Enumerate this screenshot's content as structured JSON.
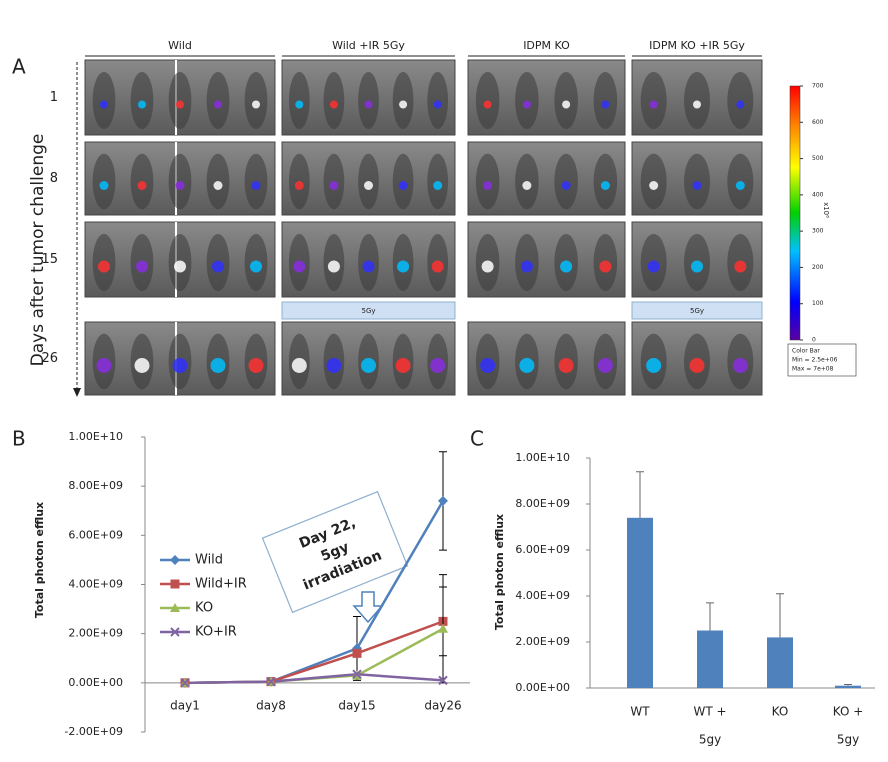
{
  "panel_a": {
    "label": "A",
    "groups": [
      "Wild",
      "Wild +IR 5Gy",
      "IDPM KO",
      "IDPM KO +IR 5Gy"
    ],
    "y_label": "Days after tumor challenge",
    "rows": [
      "1",
      "8",
      "15",
      "26"
    ],
    "dose_labels": [
      "5Gy",
      "5Gy"
    ],
    "colorbar": {
      "ticks": [
        0,
        100,
        200,
        300,
        400,
        500,
        600,
        700
      ],
      "lim": [
        0,
        700
      ],
      "unit": "x10⁶",
      "legend": [
        "Color Bar",
        "Min = 2.5e+06",
        "Max = 7e+08"
      ]
    }
  },
  "chart_data": [
    {
      "type": "line",
      "panel": "B",
      "ylabel": "Total photon efflux",
      "categories": [
        "day1",
        "day8",
        "day15",
        "day26"
      ],
      "series": [
        {
          "name": "Wild",
          "color": "#4f81bd",
          "marker": "diamond",
          "values": [
            0,
            50000000,
            1400000000,
            7400000000
          ],
          "errors": [
            0,
            0,
            1300000000,
            2000000000
          ]
        },
        {
          "name": "Wild+IR",
          "color": "#c0504d",
          "marker": "square",
          "values": [
            0,
            50000000,
            1200000000,
            2500000000
          ],
          "errors": [
            0,
            0,
            0,
            1400000000
          ]
        },
        {
          "name": "KO",
          "color": "#9bbb59",
          "marker": "triangle",
          "values": [
            0,
            50000000,
            300000000,
            2200000000
          ],
          "errors": [
            0,
            0,
            0,
            2200000000
          ]
        },
        {
          "name": "KO+IR",
          "color": "#8064a2",
          "marker": "x",
          "values": [
            0,
            50000000,
            350000000,
            100000000
          ],
          "errors": [
            0,
            0,
            0,
            0
          ]
        }
      ],
      "ylim": [
        -2000000000,
        10000000000
      ],
      "yticks": [
        {
          "value": -2000000000,
          "label": "-2.00E+09"
        },
        {
          "value": 0,
          "label": "0.00E+00"
        },
        {
          "value": 2000000000,
          "label": "2.00E+09"
        },
        {
          "value": 4000000000,
          "label": "4.00E+09"
        },
        {
          "value": 6000000000,
          "label": "6.00E+09"
        },
        {
          "value": 8000000000,
          "label": "8.00E+09"
        },
        {
          "value": 10000000000,
          "label": "1.00E+10"
        }
      ],
      "annotation": [
        "Day 22,",
        "5gy",
        "irradiation"
      ],
      "legend": "left"
    },
    {
      "type": "bar",
      "panel": "C",
      "ylabel": "Total photon efflux",
      "categories": [
        [
          "WT"
        ],
        [
          "WT +",
          "5gy"
        ],
        [
          "KO"
        ],
        [
          "KO +",
          "5gy"
        ]
      ],
      "values": [
        7400000000,
        2500000000,
        2200000000,
        100000000
      ],
      "errors": [
        2000000000,
        1200000000,
        1900000000,
        50000000
      ],
      "color": "#4f81bd",
      "ylim": [
        0,
        10000000000
      ],
      "yticks": [
        {
          "value": 0,
          "label": "0.00E+00"
        },
        {
          "value": 2000000000,
          "label": "2.00E+09"
        },
        {
          "value": 4000000000,
          "label": "4.00E+09"
        },
        {
          "value": 6000000000,
          "label": "6.00E+09"
        },
        {
          "value": 8000000000,
          "label": "8.00E+09"
        },
        {
          "value": 10000000000,
          "label": "1.00E+10"
        }
      ]
    }
  ]
}
